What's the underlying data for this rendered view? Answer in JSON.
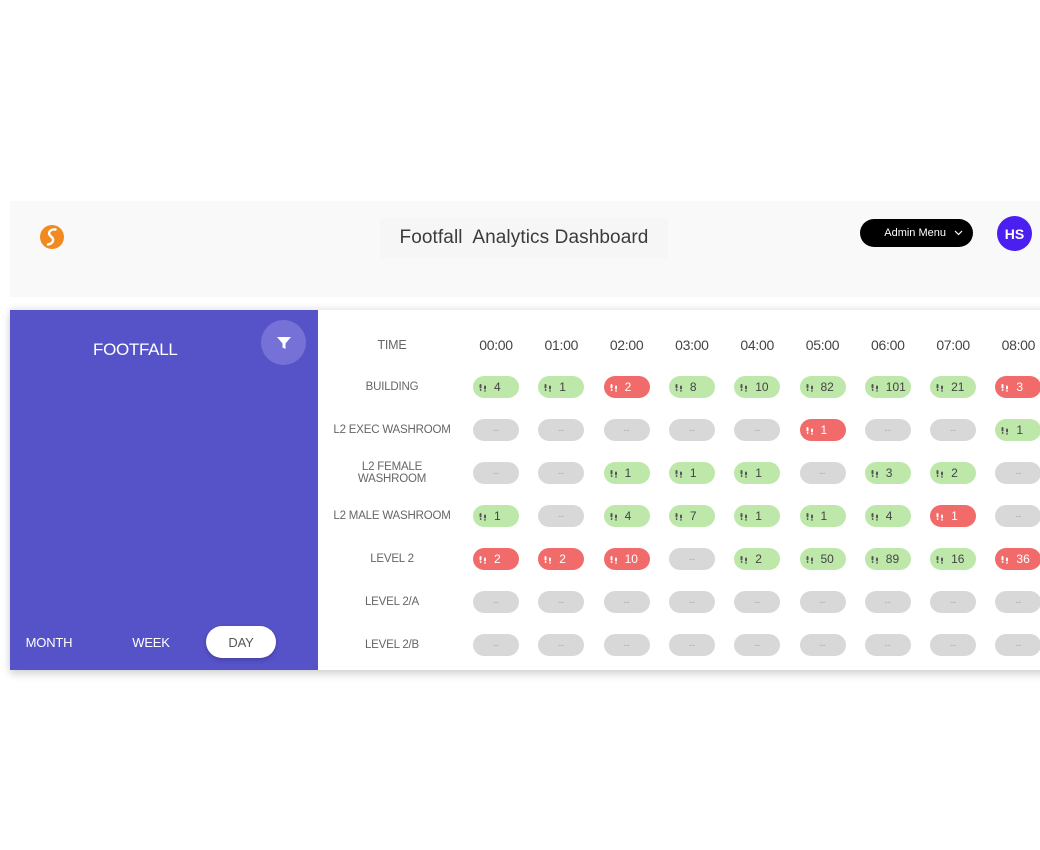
{
  "header": {
    "title": "Footfall  Analytics Dashboard",
    "admin_menu_label": "Admin Menu",
    "avatar_initials": "HS",
    "colors": {
      "logo": "#f28a22",
      "avatar": "#4a1ff0",
      "admin_menu_bg": "#000000"
    }
  },
  "sidebar": {
    "title": "FOOTFALL",
    "filter_icon": "filter-icon",
    "periods": [
      {
        "label": "MONTH",
        "active": false
      },
      {
        "label": "WEEK",
        "active": false
      },
      {
        "label": "DAY",
        "active": true
      }
    ],
    "bg_color": "#5652c8"
  },
  "table": {
    "time_header": "TIME",
    "hours": [
      "00:00",
      "01:00",
      "02:00",
      "03:00",
      "04:00",
      "05:00",
      "06:00",
      "07:00",
      "08:00"
    ],
    "empty_value": "--",
    "status_colors": {
      "ok": "#bde8a9",
      "alert": "#f26b6b",
      "none": "#d8d8d8"
    },
    "rows": [
      {
        "label": "BUILDING",
        "cells": [
          {
            "v": "4",
            "s": "green"
          },
          {
            "v": "1",
            "s": "green"
          },
          {
            "v": "2",
            "s": "red"
          },
          {
            "v": "8",
            "s": "green"
          },
          {
            "v": "10",
            "s": "green"
          },
          {
            "v": "82",
            "s": "green"
          },
          {
            "v": "101",
            "s": "green"
          },
          {
            "v": "21",
            "s": "green"
          },
          {
            "v": "3",
            "s": "red"
          }
        ]
      },
      {
        "label": "L2 EXEC WASHROOM",
        "cells": [
          {
            "v": "--",
            "s": "grey"
          },
          {
            "v": "--",
            "s": "grey"
          },
          {
            "v": "--",
            "s": "grey"
          },
          {
            "v": "--",
            "s": "grey"
          },
          {
            "v": "--",
            "s": "grey"
          },
          {
            "v": "1",
            "s": "red"
          },
          {
            "v": "--",
            "s": "grey"
          },
          {
            "v": "--",
            "s": "grey"
          },
          {
            "v": "1",
            "s": "green"
          }
        ]
      },
      {
        "label": "L2 FEMALE WASHROOM",
        "cells": [
          {
            "v": "--",
            "s": "grey"
          },
          {
            "v": "--",
            "s": "grey"
          },
          {
            "v": "1",
            "s": "green"
          },
          {
            "v": "1",
            "s": "green"
          },
          {
            "v": "1",
            "s": "green"
          },
          {
            "v": "--",
            "s": "grey"
          },
          {
            "v": "3",
            "s": "green"
          },
          {
            "v": "2",
            "s": "green"
          },
          {
            "v": "--",
            "s": "grey"
          }
        ]
      },
      {
        "label": "L2 MALE WASHROOM",
        "cells": [
          {
            "v": "1",
            "s": "green"
          },
          {
            "v": "--",
            "s": "grey"
          },
          {
            "v": "4",
            "s": "green"
          },
          {
            "v": "7",
            "s": "green"
          },
          {
            "v": "1",
            "s": "green"
          },
          {
            "v": "1",
            "s": "green"
          },
          {
            "v": "4",
            "s": "green"
          },
          {
            "v": "1",
            "s": "red"
          },
          {
            "v": "--",
            "s": "grey"
          }
        ]
      },
      {
        "label": "LEVEL 2",
        "cells": [
          {
            "v": "2",
            "s": "red"
          },
          {
            "v": "2",
            "s": "red"
          },
          {
            "v": "10",
            "s": "red"
          },
          {
            "v": "--",
            "s": "grey"
          },
          {
            "v": "2",
            "s": "green"
          },
          {
            "v": "50",
            "s": "green"
          },
          {
            "v": "89",
            "s": "green"
          },
          {
            "v": "16",
            "s": "green"
          },
          {
            "v": "36",
            "s": "red"
          }
        ]
      },
      {
        "label": "LEVEL 2/A",
        "cells": [
          {
            "v": "--",
            "s": "grey"
          },
          {
            "v": "--",
            "s": "grey"
          },
          {
            "v": "--",
            "s": "grey"
          },
          {
            "v": "--",
            "s": "grey"
          },
          {
            "v": "--",
            "s": "grey"
          },
          {
            "v": "--",
            "s": "grey"
          },
          {
            "v": "--",
            "s": "grey"
          },
          {
            "v": "--",
            "s": "grey"
          },
          {
            "v": "--",
            "s": "grey"
          }
        ]
      },
      {
        "label": "LEVEL 2/B",
        "cells": [
          {
            "v": "--",
            "s": "grey"
          },
          {
            "v": "--",
            "s": "grey"
          },
          {
            "v": "--",
            "s": "grey"
          },
          {
            "v": "--",
            "s": "grey"
          },
          {
            "v": "--",
            "s": "grey"
          },
          {
            "v": "--",
            "s": "grey"
          },
          {
            "v": "--",
            "s": "grey"
          },
          {
            "v": "--",
            "s": "grey"
          },
          {
            "v": "--",
            "s": "grey"
          }
        ]
      }
    ]
  }
}
